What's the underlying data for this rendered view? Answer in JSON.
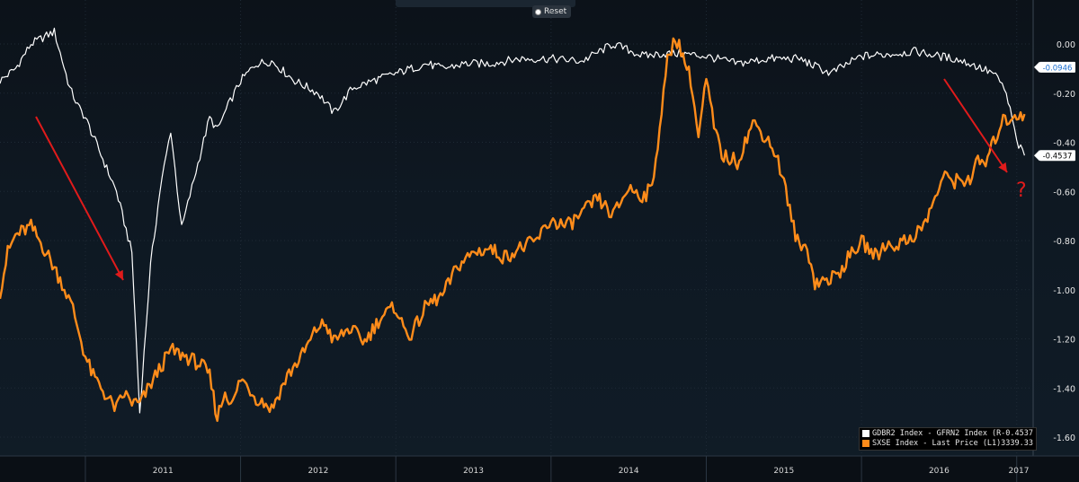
{
  "toolbar": {
    "reset_label": "Reset"
  },
  "colors": {
    "orange": "#ff8c1a",
    "white": "#ffffff",
    "arrow": "#e01b1b",
    "grid": "#1f2a36"
  },
  "annotations": {
    "question_mark": "?"
  },
  "legend": [
    {
      "label": "GDBR2 Index - GFRN2 Index (R1)",
      "value": "-0.4537",
      "color": "#ffffff"
    },
    {
      "label": "SXSE Index - Last Price (L1)",
      "value": "3339.33",
      "color": "#ff8c1a"
    }
  ],
  "right_axis": {
    "ticks": [
      "0.00",
      "-0.20",
      "-0.40",
      "-0.60",
      "-0.80",
      "-1.00",
      "-1.20",
      "-1.40",
      "-1.60"
    ],
    "tick_values": [
      0.0,
      -0.2,
      -0.4,
      -0.6,
      -0.8,
      -1.0,
      -1.2,
      -1.4,
      -1.6
    ],
    "range": [
      -1.6,
      0.0
    ],
    "last_value_labels": [
      "-0.0946",
      "-0.4537"
    ]
  },
  "x_axis": {
    "years": [
      "2011",
      "2012",
      "2013",
      "2014",
      "2015",
      "2016",
      "2017"
    ]
  },
  "chart_data": {
    "type": "line",
    "xlabel": "",
    "ylabel": "",
    "x_range": [
      2010.45,
      2017.1
    ],
    "grid": true,
    "legend_position": "bottom-right",
    "series": [
      {
        "name": "GDBR2 Index - GFRN2 Index (R1)",
        "axis": "right",
        "color": "#ffffff",
        "x": [
          2010.45,
          2010.55,
          2010.65,
          2010.8,
          2010.9,
          2010.95,
          2011.0,
          2011.1,
          2011.2,
          2011.3,
          2011.35,
          2011.42,
          2011.48,
          2011.55,
          2011.62,
          2011.7,
          2011.8,
          2011.85,
          2011.92,
          2012.0,
          2012.1,
          2012.2,
          2012.35,
          2012.5,
          2012.6,
          2012.72,
          2012.85,
          2013.0,
          2013.1,
          2013.2,
          2013.3,
          2013.45,
          2013.6,
          2013.8,
          2014.0,
          2014.2,
          2014.4,
          2014.6,
          2014.7,
          2014.85,
          2015.0,
          2015.2,
          2015.4,
          2015.6,
          2015.8,
          2016.0,
          2016.2,
          2016.35,
          2016.5,
          2016.6,
          2016.7,
          2016.85,
          2016.92,
          2016.97,
          2017.0,
          2017.05
        ],
        "y": [
          -0.15,
          -0.1,
          0.0,
          0.05,
          -0.18,
          -0.25,
          -0.3,
          -0.45,
          -0.6,
          -0.85,
          -1.5,
          -0.9,
          -0.6,
          -0.35,
          -0.75,
          -0.55,
          -0.3,
          -0.35,
          -0.25,
          -0.15,
          -0.08,
          -0.07,
          -0.15,
          -0.2,
          -0.28,
          -0.18,
          -0.15,
          -0.12,
          -0.1,
          -0.08,
          -0.1,
          -0.08,
          -0.08,
          -0.06,
          -0.06,
          -0.07,
          0.0,
          -0.05,
          -0.04,
          -0.04,
          -0.05,
          -0.08,
          -0.06,
          -0.06,
          -0.12,
          -0.05,
          -0.04,
          -0.03,
          -0.05,
          -0.06,
          -0.08,
          -0.12,
          -0.18,
          -0.3,
          -0.4,
          -0.4537
        ]
      },
      {
        "name": "SXSE Index - Last Price (L1)",
        "axis": "left",
        "color": "#ff8c1a",
        "x": [
          2010.45,
          2010.5,
          2010.55,
          2010.65,
          2010.75,
          2010.85,
          2010.92,
          2011.0,
          2011.05,
          2011.1,
          2011.15,
          2011.2,
          2011.25,
          2011.3,
          2011.35,
          2011.45,
          2011.55,
          2011.65,
          2011.75,
          2011.8,
          2011.85,
          2011.9,
          2011.95,
          2012.0,
          2012.05,
          2012.1,
          2012.15,
          2012.2,
          2012.3,
          2012.4,
          2012.5,
          2012.55,
          2012.6,
          2012.7,
          2012.8,
          2012.9,
          2013.0,
          2013.05,
          2013.1,
          2013.2,
          2013.3,
          2013.4,
          2013.5,
          2013.6,
          2013.7,
          2013.8,
          2013.9,
          2014.0,
          2014.1,
          2014.2,
          2014.3,
          2014.4,
          2014.5,
          2014.6,
          2014.65,
          2014.7,
          2014.75,
          2014.8,
          2014.85,
          2014.9,
          2014.95,
          2015.0,
          2015.05,
          2015.1,
          2015.2,
          2015.3,
          2015.4,
          2015.45,
          2015.5,
          2015.55,
          2015.6,
          2015.65,
          2015.7,
          2015.8,
          2015.85,
          2015.9,
          2016.0,
          2016.1,
          2016.15,
          2016.2,
          2016.3,
          2016.4,
          2016.5,
          2016.55,
          2016.6,
          2016.7,
          2016.75,
          2016.8,
          2016.9,
          2017.0,
          2017.05
        ],
        "y": [
          2520,
          2700,
          2780,
          2820,
          2700,
          2560,
          2440,
          2220,
          2130,
          2080,
          2020,
          1980,
          2050,
          2010,
          2000,
          2130,
          2250,
          2220,
          2180,
          2130,
          1940,
          2060,
          2000,
          2120,
          2080,
          2030,
          2010,
          1980,
          2130,
          2230,
          2360,
          2370,
          2290,
          2350,
          2290,
          2400,
          2450,
          2350,
          2320,
          2460,
          2500,
          2640,
          2700,
          2720,
          2680,
          2720,
          2750,
          2850,
          2820,
          2880,
          2950,
          2870,
          3000,
          2960,
          3000,
          3280,
          3580,
          3700,
          3610,
          3500,
          3230,
          3500,
          3280,
          3150,
          3120,
          3300,
          3220,
          3150,
          3030,
          2850,
          2720,
          2730,
          2560,
          2580,
          2600,
          2660,
          2750,
          2680,
          2740,
          2730,
          2760,
          2820,
          3000,
          3060,
          3030,
          3040,
          3120,
          3110,
          3300,
          3339.33,
          3339.33
        ]
      }
    ]
  }
}
